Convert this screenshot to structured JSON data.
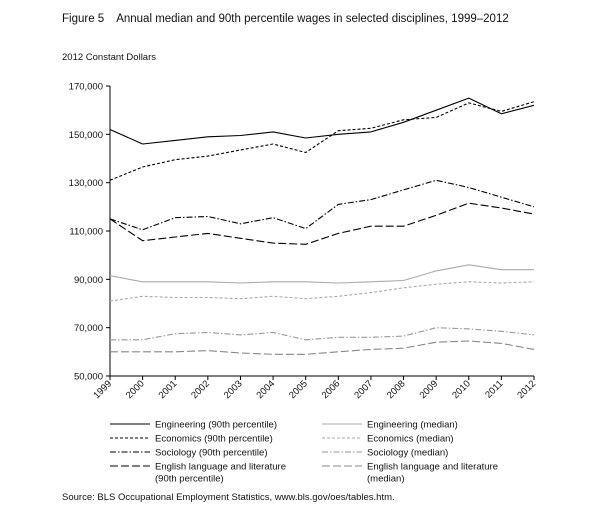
{
  "figure": {
    "number": "Figure 5",
    "title": "Annual median and 90th percentile wages in selected disciplines, 1999–2012",
    "units": "2012 Constant Dollars",
    "source": "Source: BLS Occupational Employment Statistics, www.bls.gov/oes/tables.htm."
  },
  "chart_data": {
    "type": "line",
    "title": "Annual median and 90th percentile wages in selected disciplines, 1999–2012",
    "ylabel": "2012 Constant Dollars",
    "xlabel": "",
    "x": [
      "1999",
      "2000",
      "2001",
      "2002",
      "2003",
      "2004",
      "2005",
      "2006",
      "2007",
      "2008",
      "2009",
      "2010",
      "2011",
      "2012"
    ],
    "ylim": [
      50000,
      170000
    ],
    "yticks": [
      50000,
      70000,
      90000,
      110000,
      130000,
      150000,
      170000
    ],
    "ytick_labels": [
      "50,000",
      "70,000",
      "90,000",
      "110,000",
      "130,000",
      "150,000",
      "170,000"
    ],
    "grid": false,
    "legend_position": "bottom",
    "series": [
      {
        "name": "Engineering (90th percentile)",
        "color": "#000000",
        "dash": "solid",
        "values": [
          152000,
          146000,
          147500,
          149000,
          149500,
          151000,
          148500,
          150000,
          151000,
          155000,
          160000,
          165000,
          158500,
          162000
        ]
      },
      {
        "name": "Engineering (median)",
        "color": "#aaaaaa",
        "dash": "solid",
        "values": [
          91500,
          89000,
          89000,
          89000,
          88500,
          89000,
          89000,
          88500,
          89000,
          89500,
          93500,
          96000,
          94000,
          94000
        ]
      },
      {
        "name": "Economics (90th percentile)",
        "color": "#000000",
        "dash": "short",
        "values": [
          131000,
          136500,
          139500,
          141000,
          143500,
          146000,
          142500,
          151500,
          152500,
          156000,
          157000,
          163000,
          159500,
          163500
        ]
      },
      {
        "name": "Economics (median)",
        "color": "#aaaaaa",
        "dash": "short",
        "values": [
          81000,
          83000,
          82500,
          82500,
          82000,
          83000,
          82000,
          83000,
          84500,
          86500,
          88000,
          89000,
          88500,
          89000
        ]
      },
      {
        "name": "Sociology (90th percentile)",
        "color": "#000000",
        "dash": "dashdot",
        "values": [
          115000,
          110500,
          115500,
          116000,
          113000,
          115500,
          111000,
          121000,
          123000,
          127000,
          131000,
          128000,
          124000,
          120000
        ]
      },
      {
        "name": "Sociology (median)",
        "color": "#999999",
        "dash": "dashdot",
        "values": [
          65000,
          65000,
          67500,
          68000,
          67000,
          68000,
          65000,
          66000,
          66000,
          66500,
          70000,
          69500,
          68500,
          67000
        ]
      },
      {
        "name": "English language and literature (90th percentile)",
        "color": "#000000",
        "dash": "long",
        "values": [
          115000,
          106000,
          107500,
          109000,
          107000,
          105000,
          104500,
          109000,
          112000,
          112000,
          116500,
          121500,
          119500,
          117000
        ]
      },
      {
        "name": "English language and literature (median)",
        "color": "#888888",
        "dash": "long",
        "values": [
          60000,
          60000,
          60000,
          60500,
          59500,
          59000,
          59000,
          60000,
          61000,
          61500,
          64000,
          64500,
          63500,
          61000
        ]
      }
    ],
    "legend": {
      "left": [
        {
          "series": 0,
          "lines": [
            "Engineering (90th percentile)"
          ]
        },
        {
          "series": 2,
          "lines": [
            "Economics (90th percentile)"
          ]
        },
        {
          "series": 4,
          "lines": [
            "Sociology (90th percentile)"
          ]
        },
        {
          "series": 6,
          "lines": [
            "English language and literature",
            "(90th percentile)"
          ]
        }
      ],
      "right": [
        {
          "series": 1,
          "lines": [
            "Engineering (median)"
          ]
        },
        {
          "series": 3,
          "lines": [
            "Economics (median)"
          ]
        },
        {
          "series": 5,
          "lines": [
            "Sociology (median)"
          ]
        },
        {
          "series": 7,
          "lines": [
            "English language and literature",
            "(median)"
          ]
        }
      ]
    }
  }
}
